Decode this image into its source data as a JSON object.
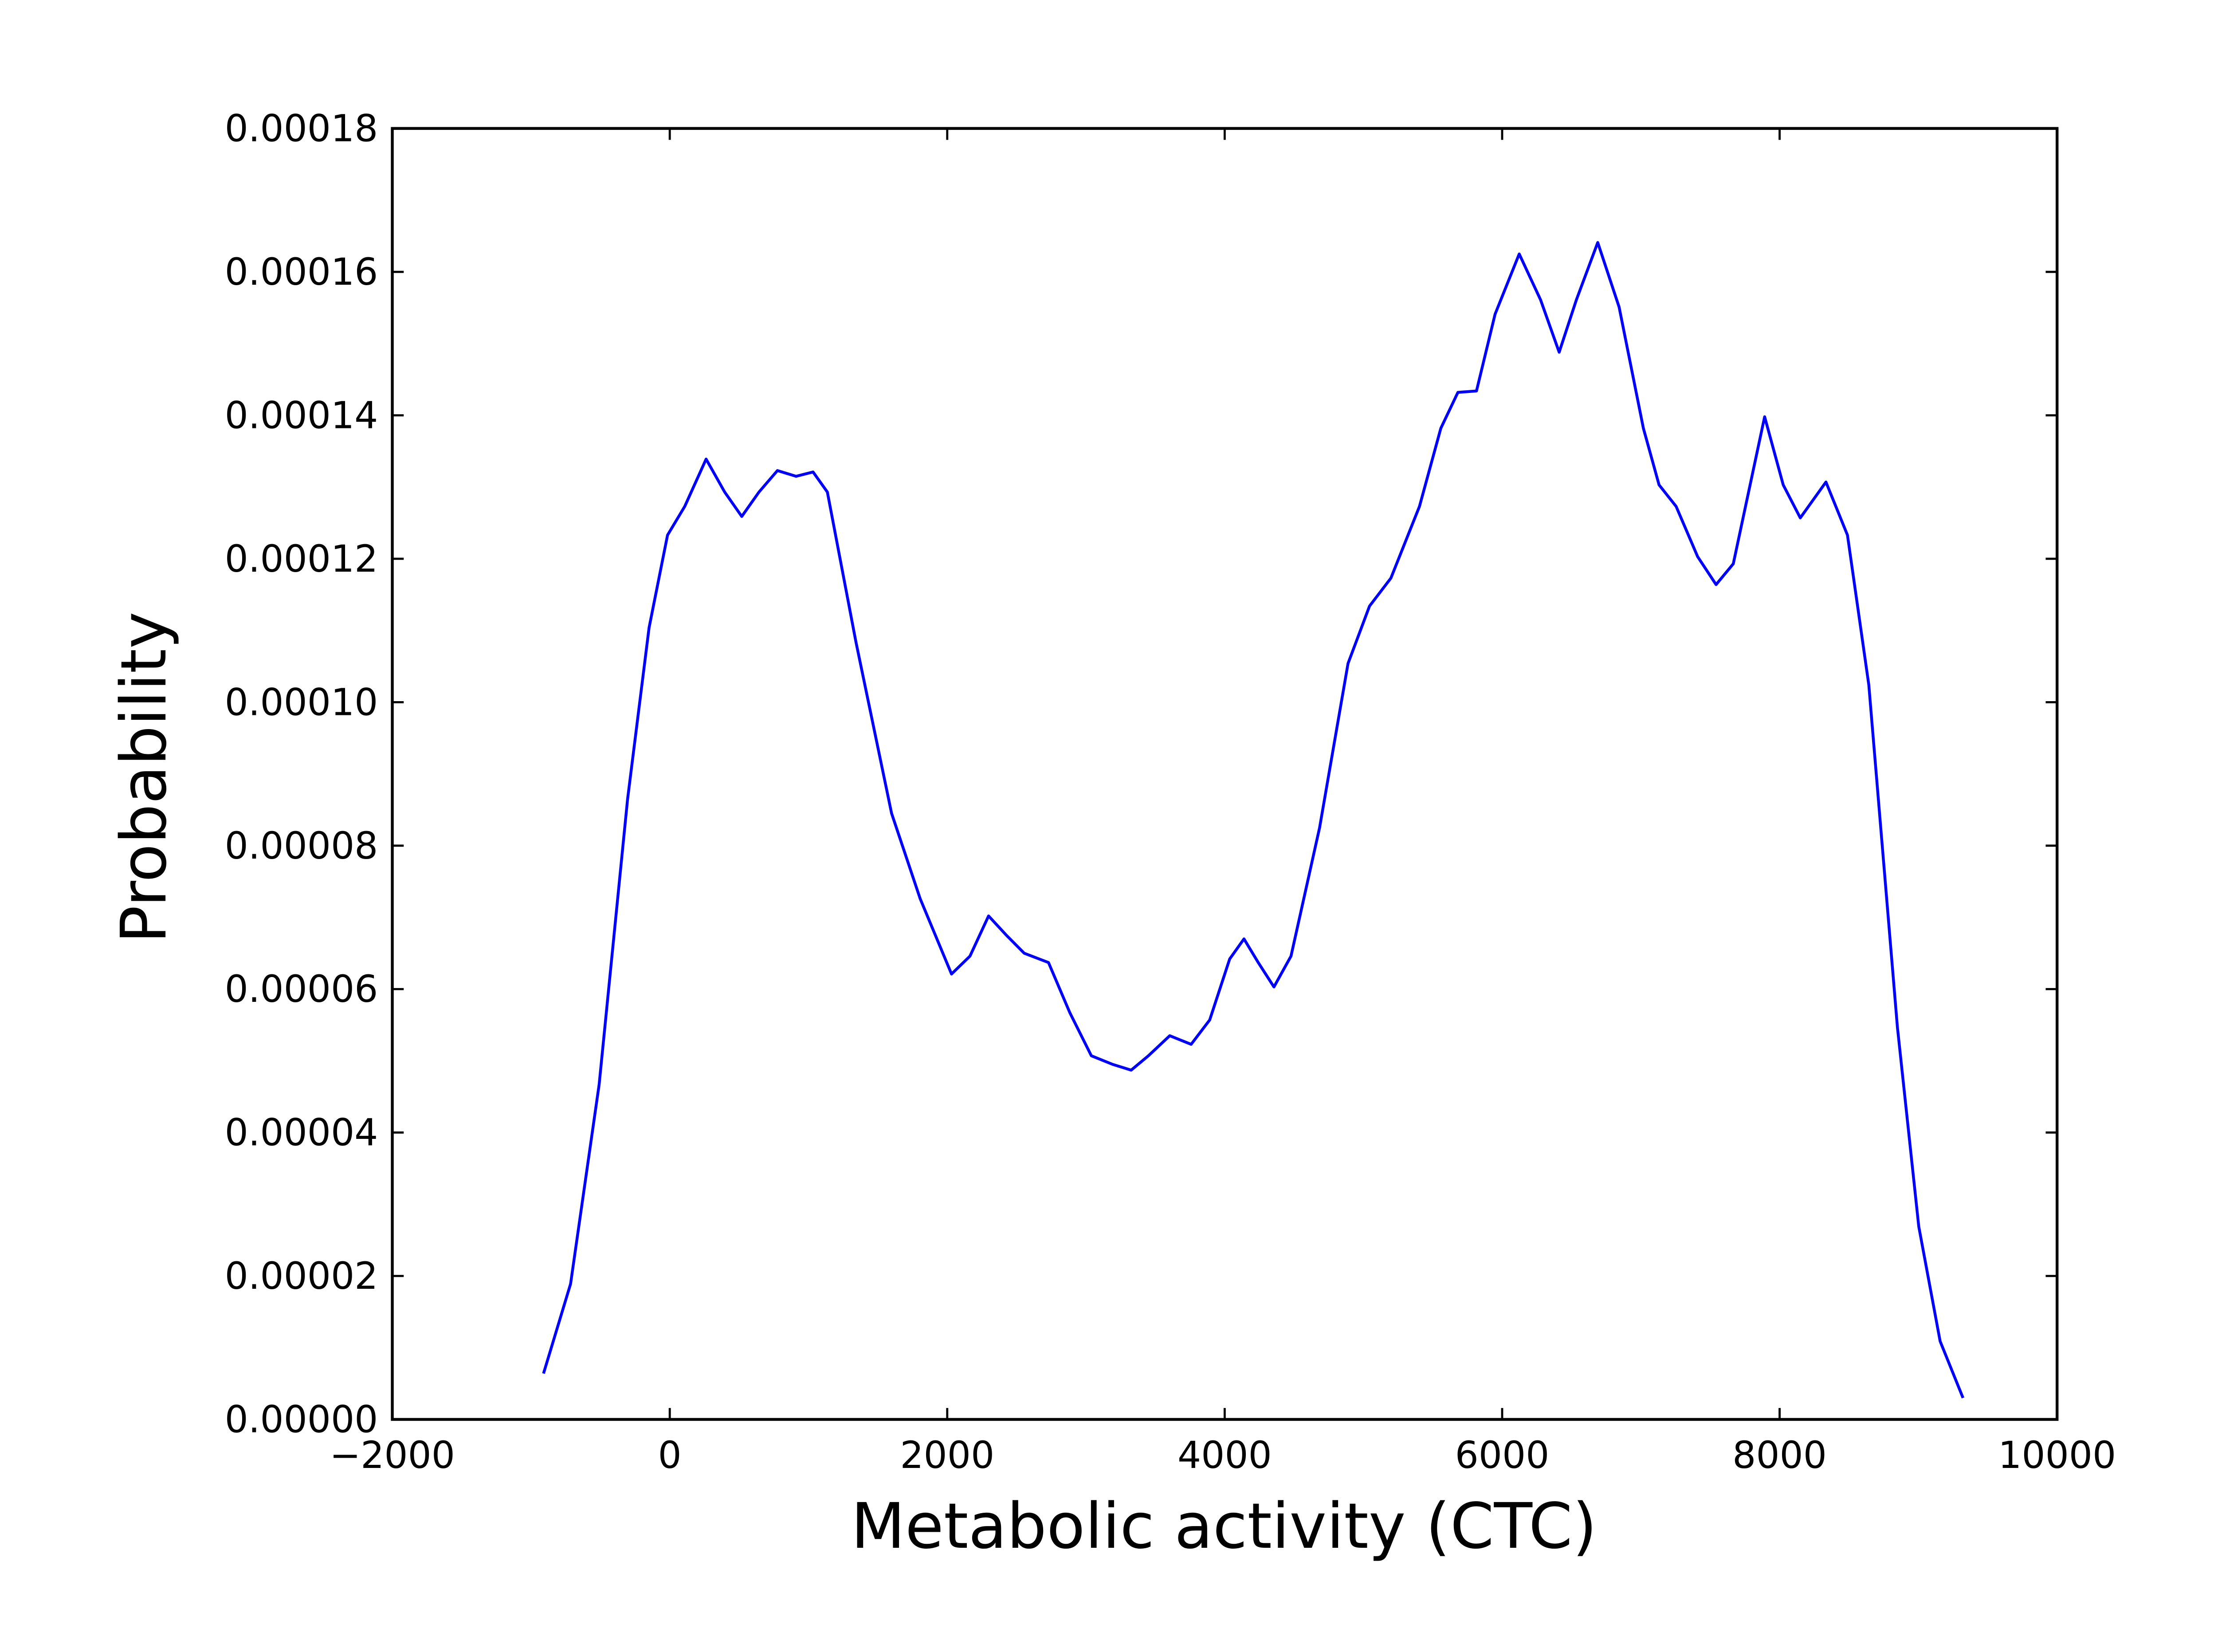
{
  "chart_data": {
    "type": "line",
    "xlabel": "Metabolic activity (CTC)",
    "ylabel": "Probability",
    "xlim": [
      -2000,
      10000
    ],
    "ylim": [
      0,
      0.00018
    ],
    "xticks": [
      {
        "value": -2000,
        "label": "−2000"
      },
      0,
      2000,
      4000,
      6000,
      8000,
      10000
    ],
    "yticks": [
      {
        "value": 0,
        "label": "0.00000"
      },
      2e-05,
      4e-05,
      6e-05,
      8e-05,
      {
        "value": 0.0001,
        "label": "0.00010"
      },
      0.00012,
      0.00014,
      0.00016,
      0.00018
    ],
    "series": [
      {
        "color": "#0000ff",
        "x": [
          -910,
          -715,
          -509,
          -304,
          -149,
          -16,
          108,
          262,
          396,
          519,
          643,
          776,
          910,
          1033,
          1136,
          1342,
          1599,
          1805,
          2031,
          2164,
          2298,
          2422,
          2555,
          2730,
          2884,
          3039,
          3193,
          3326,
          3450,
          3604,
          3758,
          3892,
          4036,
          4139,
          4242,
          4355,
          4478,
          4684,
          4889,
          5044,
          5198,
          5404,
          5558,
          5681,
          5815,
          5949,
          6123,
          6277,
          6411,
          6535,
          6689,
          6843,
          7018,
          7131,
          7254,
          7409,
          7542,
          7666,
          7892,
          8026,
          8149,
          8334,
          8489,
          8643,
          8849,
          9003,
          9157,
          9322
        ],
        "values": [
          6.4e-06,
          1.89e-05,
          4.67e-05,
          8.65e-05,
          0.0001104,
          0.0001233,
          0.0001273,
          0.0001339,
          0.0001293,
          0.0001259,
          0.0001293,
          0.0001323,
          0.0001315,
          0.0001321,
          0.0001293,
          0.0001084,
          8.45e-05,
          7.26e-05,
          6.21e-05,
          6.46e-05,
          7.02e-05,
          6.76e-05,
          6.5e-05,
          6.37e-05,
          5.67e-05,
          5.07e-05,
          4.95e-05,
          4.87e-05,
          5.07e-05,
          5.35e-05,
          5.23e-05,
          5.57e-05,
          6.42e-05,
          6.7e-05,
          6.37e-05,
          6.03e-05,
          6.46e-05,
          8.25e-05,
          0.0001054,
          0.0001134,
          0.0001173,
          0.0001273,
          0.0001382,
          0.0001432,
          0.0001434,
          0.0001541,
          0.0001625,
          0.0001561,
          0.0001488,
          0.0001561,
          0.0001641,
          0.0001551,
          0.0001382,
          0.0001303,
          0.0001273,
          0.0001203,
          0.0001164,
          0.0001193,
          0.0001398,
          0.0001303,
          0.0001257,
          0.0001307,
          0.0001233,
          0.0001024,
          5.47e-05,
          2.69e-05,
          1.09e-05,
          3e-06
        ]
      }
    ]
  }
}
